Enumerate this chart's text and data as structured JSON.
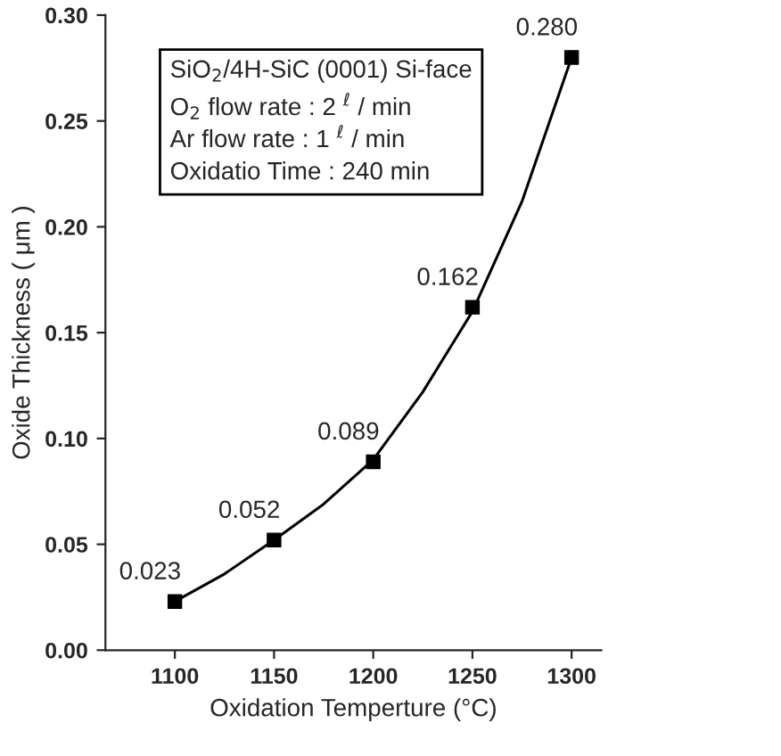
{
  "chart_data": {
    "type": "line",
    "xlabel": "Oxidation Temperture (°C)",
    "ylabel": "Oxide Thickness ( μm )",
    "xlim": [
      1065,
      1315
    ],
    "xticks": [
      1100,
      1150,
      1200,
      1250,
      1300
    ],
    "ylim": [
      0,
      0.3
    ],
    "yticks": [
      {
        "value": 0,
        "label": "0.00"
      },
      {
        "value": 0.05,
        "label": "0.05"
      },
      {
        "value": 0.1,
        "label": "0.10"
      },
      {
        "value": 0.15,
        "label": "0.15"
      },
      {
        "value": 0.2,
        "label": "0.20"
      },
      {
        "value": 0.25,
        "label": "0.25"
      },
      {
        "value": 0.3,
        "label": "0.30"
      }
    ],
    "grid": false,
    "series": [
      {
        "type": "scatter",
        "marker": "square",
        "color": "#000000",
        "x": [
          1100,
          1150,
          1200,
          1250,
          1300
        ],
        "values": [
          0.023,
          0.052,
          0.089,
          0.162,
          0.28
        ],
        "value_labels": [
          "0.023",
          "0.052",
          "0.089",
          "0.162",
          "0.280"
        ]
      },
      {
        "marker": "none",
        "color": "#000000",
        "x": [
          1100,
          1125,
          1150,
          1175,
          1200,
          1225,
          1250,
          1275,
          1300
        ],
        "values": [
          0.023,
          0.036,
          0.052,
          0.069,
          0.09,
          0.122,
          0.16,
          0.212,
          0.28
        ]
      }
    ],
    "annotations": [
      "SiO$_{2}$/4H-SiC (0001) Si-face",
      "O$_{2}$ flow rate : 2 $^{ℓ}$ / min",
      "Ar flow rate : 1 $^{ℓ}$ / min",
      "Oxidatio Time : 240 min"
    ]
  }
}
